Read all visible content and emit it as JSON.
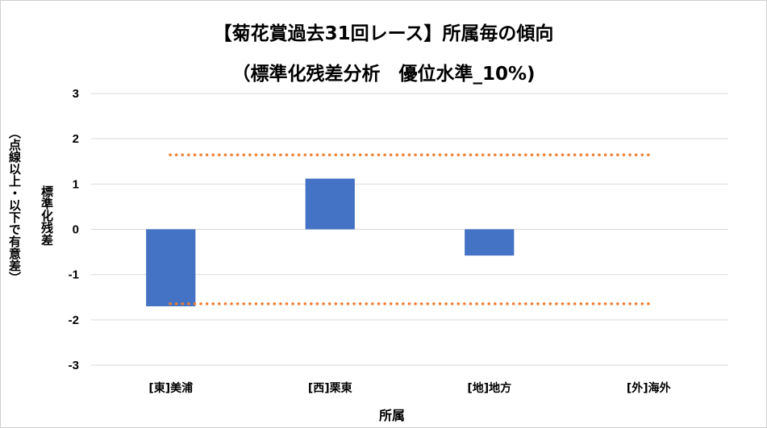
{
  "chart_data": {
    "type": "bar",
    "title_line1": "【菊花賞過去31回レース】所属毎の傾向",
    "title_line2": "（標準化残差分析　優位水準_10%)",
    "ylabel": "標準化残差",
    "ylabel_note": "（点線以上・以下で有意差）",
    "xlabel": "所属",
    "categories": [
      "[東]美浦",
      "[西]栗東",
      "[地]地方",
      "[外]海外"
    ],
    "values": [
      -1.7,
      1.12,
      -0.58,
      0
    ],
    "ylim": [
      -3,
      3
    ],
    "yticks": [
      3,
      2,
      1,
      0,
      -1,
      -2,
      -3
    ],
    "threshold_lines": [
      1.645,
      -1.645
    ],
    "grid": true,
    "bar_color": "#4472c4",
    "threshold_color": "#ed7d31",
    "grid_color": "#d9d9d9"
  }
}
